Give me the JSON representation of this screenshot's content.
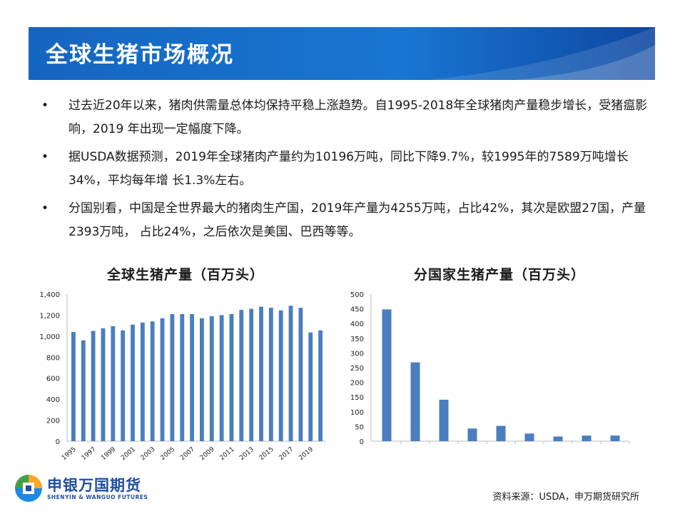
{
  "page": {
    "title": "全球生猪市场概况",
    "bullets": [
      "过去近20年以来，猪肉供需量总体均保持平稳上涨趋势。自1995-2018年全球猪肉产量稳步增长，受猪瘟影响，2019 年出现一定幅度下降。",
      "据USDA数据预测，2019年全球猪肉产量约为10196万吨，同比下降9.7%，较1995年的7589万吨增长34%，平均每年增 长1.3%左右。",
      "分国别看，中国是全世界最大的猪肉生产国，2019年产量为4255万吨，占比42%，其次是欧盟27国，产量2393万吨， 占比24%，之后依次是美国、巴西等等。"
    ],
    "bullet_symbol": "•",
    "source": "资料来源：USDA，申万期货研究所",
    "logo": {
      "name_cn": "申银万国期货",
      "name_en": "SHENYIN & WANGUO FUTURES"
    }
  },
  "colors": {
    "header_blue": "#1565c0",
    "bar": "#4a7ebf"
  },
  "chart_data": [
    {
      "type": "bar",
      "title": "全球生猪产量（百万头）",
      "xlabel": "",
      "ylabel": "",
      "ylim": [
        0,
        1400
      ],
      "yticks": [
        "0",
        "200",
        "400",
        "600",
        "800",
        "1,000",
        "1,200",
        "1,400"
      ],
      "categories": [
        "1995",
        "1996",
        "1997",
        "1998",
        "1999",
        "2000",
        "2001",
        "2002",
        "2003",
        "2004",
        "2005",
        "2006",
        "2007",
        "2008",
        "2009",
        "2010",
        "2011",
        "2012",
        "2013",
        "2014",
        "2015",
        "2016",
        "2017",
        "2018",
        "2019",
        "2020"
      ],
      "tick_labels": [
        "1995",
        "1997",
        "1999",
        "2001",
        "2003",
        "2005",
        "2007",
        "2009",
        "2011",
        "2013",
        "2015",
        "2017",
        "2019"
      ],
      "values": [
        1040,
        960,
        1050,
        1075,
        1095,
        1055,
        1110,
        1130,
        1140,
        1170,
        1210,
        1210,
        1210,
        1170,
        1190,
        1200,
        1210,
        1250,
        1260,
        1280,
        1270,
        1245,
        1290,
        1270,
        1035,
        1055
      ],
      "grid": false
    },
    {
      "type": "bar",
      "title": "分国家生猪产量（百万头）",
      "xlabel": "",
      "ylabel": "",
      "ylim": [
        0,
        500
      ],
      "yticks": [
        "0",
        "50",
        "100",
        "150",
        "200",
        "250",
        "300",
        "350",
        "400",
        "450",
        "500"
      ],
      "categories": [
        "",
        "",
        "",
        "",
        "",
        "",
        "",
        "",
        ""
      ],
      "values": [
        448,
        268,
        141,
        43,
        52,
        26,
        16,
        19,
        19
      ],
      "grid": false
    }
  ]
}
